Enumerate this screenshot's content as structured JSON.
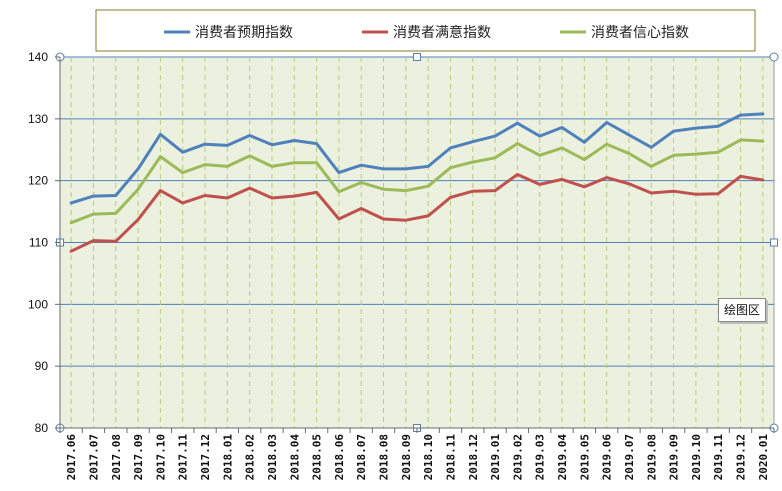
{
  "chart_data": {
    "type": "line",
    "title": "",
    "xlabel": "",
    "ylabel": "",
    "ylim": [
      80,
      140
    ],
    "yticks": [
      80,
      90,
      100,
      110,
      120,
      130,
      140
    ],
    "grid": "horizontal solid, vertical dashed",
    "legend_position": "top",
    "categories": [
      "2017.06",
      "2017.07",
      "2017.08",
      "2017.09",
      "2017.10",
      "2017.11",
      "2017.12",
      "2018.01",
      "2018.02",
      "2018.03",
      "2018.04",
      "2018.05",
      "2018.06",
      "2018.07",
      "2018.08",
      "2018.09",
      "2018.10",
      "2018.11",
      "2018.12",
      "2019.01",
      "2019.02",
      "2019.03",
      "2019.04",
      "2019.05",
      "2019.06",
      "2019.07",
      "2019.08",
      "2019.09",
      "2019.10",
      "2019.11",
      "2019.12",
      "2020.01"
    ],
    "series": [
      {
        "name": "消费者预期指数",
        "color": "#4f81bd",
        "values": [
          116.4,
          117.5,
          117.6,
          121.9,
          127.5,
          124.6,
          125.9,
          125.7,
          127.3,
          125.8,
          126.5,
          126.0,
          121.3,
          122.5,
          121.9,
          121.9,
          122.3,
          125.3,
          126.3,
          127.2,
          129.3,
          127.2,
          128.6,
          126.2,
          129.4,
          127.4,
          125.4,
          128.0,
          128.5,
          128.8,
          130.6,
          130.8
        ]
      },
      {
        "name": "消费者满意指数",
        "color": "#c0504d",
        "values": [
          108.6,
          110.3,
          110.2,
          113.7,
          118.4,
          116.4,
          117.6,
          117.2,
          118.8,
          117.2,
          117.5,
          118.1,
          113.8,
          115.5,
          113.8,
          113.6,
          114.3,
          117.3,
          118.3,
          118.4,
          121.0,
          119.4,
          120.2,
          119.0,
          120.5,
          119.5,
          118.0,
          118.3,
          117.8,
          117.9,
          120.7,
          120.1
        ]
      },
      {
        "name": "消费者信心指数",
        "color": "#9bbb59",
        "values": [
          113.2,
          114.6,
          114.7,
          118.6,
          123.9,
          121.3,
          122.6,
          122.3,
          124.0,
          122.3,
          122.9,
          122.9,
          118.2,
          119.7,
          118.6,
          118.4,
          119.1,
          122.1,
          123.0,
          123.7,
          126.0,
          124.1,
          125.3,
          123.4,
          125.9,
          124.4,
          122.3,
          124.1,
          124.3,
          124.6,
          126.6,
          126.4
        ]
      }
    ],
    "annotation": "绘图区"
  }
}
